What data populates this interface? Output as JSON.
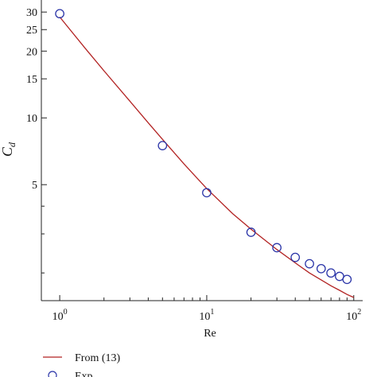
{
  "chart_data": {
    "type": "scatter",
    "xlabel": "Re",
    "ylabel": "C",
    "ylabel_subscript": "d",
    "x_scale": "log",
    "y_scale": "log",
    "xlim": [
      0.75,
      115
    ],
    "ylim": [
      1.5,
      34
    ],
    "grid": false,
    "x_ticks": [
      {
        "value": 1,
        "base": "10",
        "exp": "0"
      },
      {
        "value": 10,
        "base": "10",
        "exp": "1"
      },
      {
        "value": 100,
        "base": "10",
        "exp": "2"
      }
    ],
    "y_ticks": [
      {
        "value": 5,
        "label": "5"
      },
      {
        "value": 10,
        "label": "10"
      },
      {
        "value": 15,
        "label": "15"
      },
      {
        "value": 20,
        "label": "20"
      },
      {
        "value": 25,
        "label": "25"
      },
      {
        "value": 30,
        "label": "30"
      }
    ],
    "y_minor_ticks": [
      2,
      3,
      4
    ],
    "series": [
      {
        "name": "From (13)",
        "kind": "line",
        "color": "#b22222",
        "x": [
          1,
          1.5,
          2,
          3,
          4,
          5,
          7,
          10,
          15,
          20,
          30,
          40,
          50,
          60,
          70,
          80,
          90,
          100
        ],
        "y": [
          28.5,
          20.5,
          16.3,
          11.9,
          9.5,
          8.0,
          6.2,
          4.8,
          3.7,
          3.15,
          2.55,
          2.22,
          2.0,
          1.86,
          1.75,
          1.67,
          1.6,
          1.55
        ]
      },
      {
        "name": "Exp",
        "kind": "marker",
        "color": "#2b35a8",
        "x": [
          1,
          5,
          10,
          20,
          30,
          40,
          50,
          60,
          70,
          80,
          90
        ],
        "y": [
          29.5,
          7.5,
          4.6,
          3.05,
          2.6,
          2.35,
          2.2,
          2.09,
          2.0,
          1.93,
          1.87
        ]
      }
    ],
    "legend_position": "bottom-left"
  }
}
